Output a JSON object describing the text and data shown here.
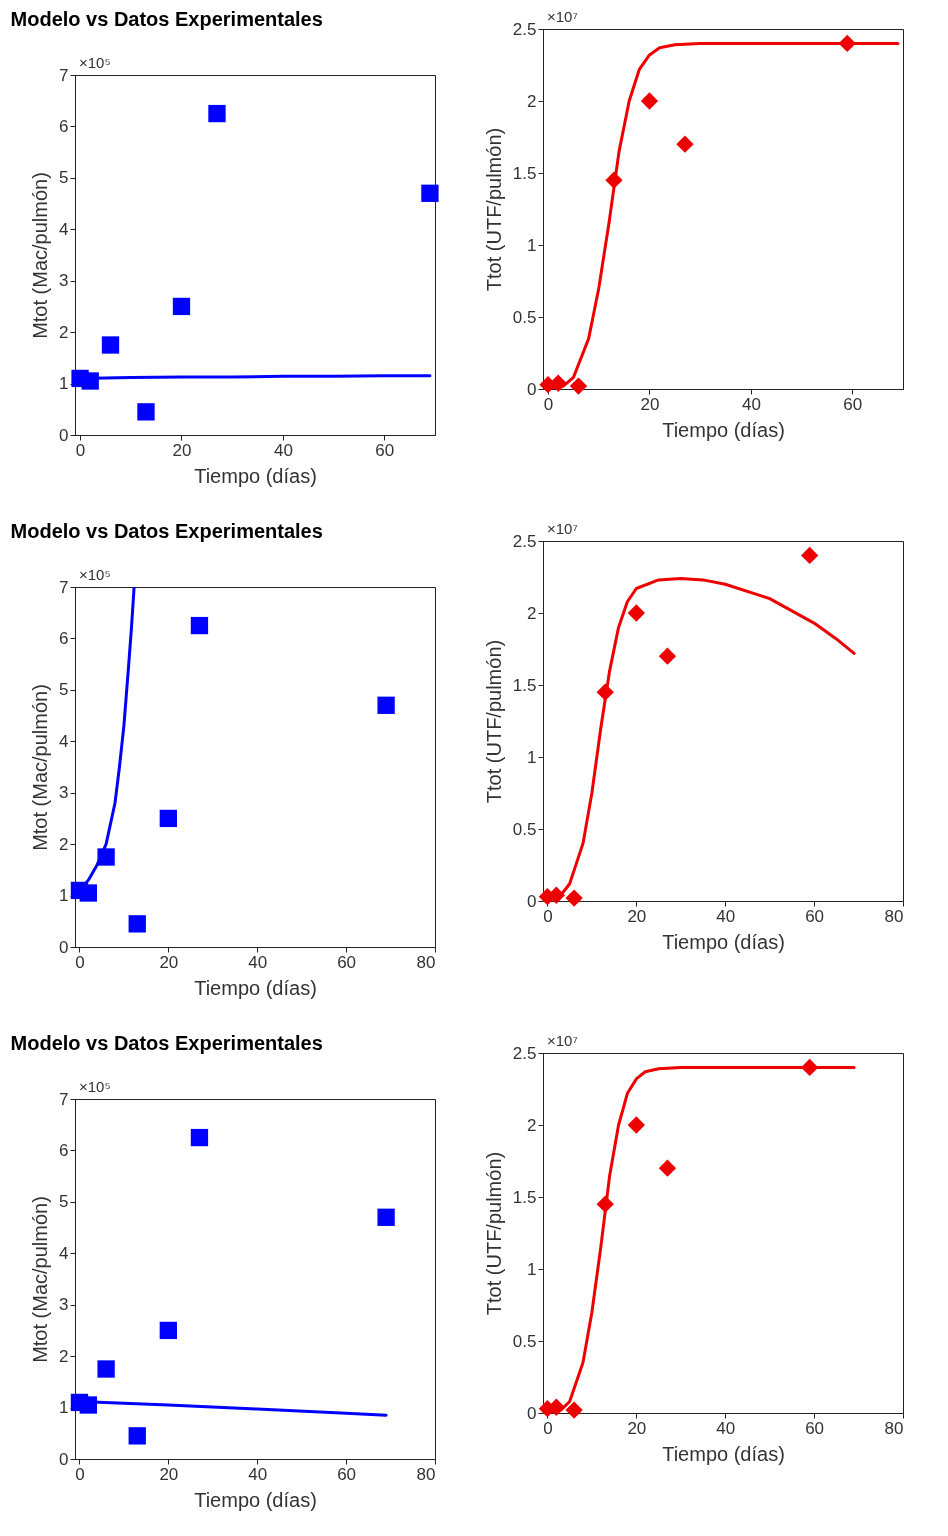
{
  "chart_data": [
    {
      "type": "scatter",
      "title": "Modelo vs Datos Experimentales",
      "xlabel": "Tiempo (días)",
      "ylabel": "Mtot (Mac/pulmón)",
      "annotations": [
        "×10⁵"
      ],
      "xlim": [
        -1,
        70
      ],
      "xticks": [
        0,
        20,
        40,
        60
      ],
      "ylim": [
        0,
        7
      ],
      "yticks": [
        0,
        1,
        2,
        3,
        4,
        5,
        6,
        7
      ],
      "series": [
        {
          "type": "scatter",
          "color": "#0000ff",
          "marker": "square",
          "x": [
            0,
            2,
            6,
            13,
            20,
            27,
            69
          ],
          "values": [
            1.1,
            1.05,
            1.75,
            0.45,
            2.5,
            6.25,
            4.7
          ]
        },
        {
          "type": "line",
          "color": "#0000ff",
          "marker": "none",
          "x": [
            0,
            10,
            20,
            30,
            40,
            50,
            60,
            69
          ],
          "values": [
            1.1,
            1.12,
            1.13,
            1.13,
            1.14,
            1.14,
            1.15,
            1.15
          ]
        }
      ]
    },
    {
      "type": "scatter",
      "xlabel": "Tiempo (días)",
      "ylabel": "Ttot (UTF/pulmón)",
      "annotations": [
        "×10⁷"
      ],
      "xlim": [
        -1,
        70
      ],
      "xticks": [
        0,
        20,
        40,
        60
      ],
      "ylim": [
        0,
        2.5
      ],
      "yticks": [
        0,
        0.5,
        1,
        1.5,
        2,
        2.5
      ],
      "series": [
        {
          "type": "scatter",
          "color": "#ee0000",
          "marker": "diamond",
          "x": [
            0,
            2,
            6,
            13,
            20,
            27,
            59
          ],
          "values": [
            0.03,
            0.04,
            0.02,
            1.45,
            2.0,
            1.7,
            2.4
          ]
        },
        {
          "type": "line",
          "color": "#ee0000",
          "marker": "none",
          "x": [
            0,
            3,
            5,
            8,
            10,
            12,
            14,
            16,
            18,
            20,
            22,
            25,
            30,
            40,
            50,
            60,
            69
          ],
          "values": [
            0,
            0.02,
            0.08,
            0.35,
            0.7,
            1.15,
            1.65,
            2.0,
            2.22,
            2.32,
            2.37,
            2.39,
            2.4,
            2.4,
            2.4,
            2.4,
            2.4
          ]
        }
      ]
    },
    {
      "type": "scatter",
      "title": "Modelo vs Datos Experimentales",
      "xlabel": "Tiempo (días)",
      "ylabel": "Mtot (Mac/pulmón)",
      "annotations": [
        "×10⁵"
      ],
      "xlim": [
        -1,
        80
      ],
      "xticks": [
        0,
        20,
        40,
        60,
        80
      ],
      "ylim": [
        0,
        7
      ],
      "yticks": [
        0,
        1,
        2,
        3,
        4,
        5,
        6,
        7
      ],
      "series": [
        {
          "type": "scatter",
          "color": "#0000ff",
          "marker": "square",
          "x": [
            0,
            2,
            6,
            13,
            20,
            27,
            69
          ],
          "values": [
            1.1,
            1.05,
            1.75,
            0.45,
            2.5,
            6.25,
            4.7
          ]
        },
        {
          "type": "line",
          "color": "#0000ff",
          "marker": "none",
          "x": [
            0,
            2,
            4,
            6,
            8,
            9,
            10,
            11,
            11.7,
            12.3
          ],
          "values": [
            1.1,
            1.3,
            1.6,
            2.0,
            2.8,
            3.5,
            4.3,
            5.4,
            6.2,
            7
          ]
        }
      ]
    },
    {
      "type": "scatter",
      "xlabel": "Tiempo (días)",
      "ylabel": "Ttot (UTF/pulmón)",
      "annotations": [
        "×10⁷"
      ],
      "xlim": [
        -1,
        80
      ],
      "xticks": [
        0,
        20,
        40,
        60,
        80
      ],
      "ylim": [
        0,
        2.5
      ],
      "yticks": [
        0,
        0.5,
        1,
        1.5,
        2,
        2.5
      ],
      "series": [
        {
          "type": "scatter",
          "color": "#ee0000",
          "marker": "diamond",
          "x": [
            0,
            2,
            6,
            13,
            20,
            27,
            59
          ],
          "values": [
            0.03,
            0.04,
            0.02,
            1.45,
            2.0,
            1.7,
            2.4
          ]
        },
        {
          "type": "line",
          "color": "#ee0000",
          "marker": "none",
          "x": [
            0,
            3,
            5,
            8,
            10,
            12,
            14,
            16,
            18,
            20,
            25,
            30,
            35,
            40,
            50,
            60,
            65,
            69
          ],
          "values": [
            0,
            0.04,
            0.12,
            0.4,
            0.75,
            1.2,
            1.6,
            1.9,
            2.08,
            2.17,
            2.23,
            2.24,
            2.23,
            2.2,
            2.1,
            1.93,
            1.82,
            1.72
          ]
        }
      ]
    },
    {
      "type": "scatter",
      "title": "Modelo vs Datos Experimentales",
      "xlabel": "Tiempo (días)",
      "ylabel": "Mtot (Mac/pulmón)",
      "annotations": [
        "×10⁵"
      ],
      "xlim": [
        -1,
        80
      ],
      "xticks": [
        0,
        20,
        40,
        60,
        80
      ],
      "ylim": [
        0,
        7
      ],
      "yticks": [
        0,
        1,
        2,
        3,
        4,
        5,
        6,
        7
      ],
      "series": [
        {
          "type": "scatter",
          "color": "#0000ff",
          "marker": "square",
          "x": [
            0,
            2,
            6,
            13,
            20,
            27,
            69
          ],
          "values": [
            1.1,
            1.05,
            1.75,
            0.45,
            2.5,
            6.25,
            4.7
          ]
        },
        {
          "type": "line",
          "color": "#0000ff",
          "marker": "none",
          "x": [
            0,
            20,
            40,
            60,
            69
          ],
          "values": [
            1.12,
            1.05,
            0.97,
            0.89,
            0.85
          ]
        }
      ]
    },
    {
      "type": "scatter",
      "xlabel": "Tiempo (días)",
      "ylabel": "Ttot (UTF/pulmón)",
      "annotations": [
        "×10⁷"
      ],
      "xlim": [
        -1,
        80
      ],
      "xticks": [
        0,
        20,
        40,
        60,
        80
      ],
      "ylim": [
        0,
        2.5
      ],
      "yticks": [
        0,
        0.5,
        1,
        1.5,
        2,
        2.5
      ],
      "series": [
        {
          "type": "scatter",
          "color": "#ee0000",
          "marker": "diamond",
          "x": [
            0,
            2,
            6,
            13,
            20,
            27,
            59
          ],
          "values": [
            0.03,
            0.04,
            0.02,
            1.45,
            2.0,
            1.7,
            2.4
          ]
        },
        {
          "type": "line",
          "color": "#ee0000",
          "marker": "none",
          "x": [
            0,
            3,
            5,
            8,
            10,
            12,
            14,
            16,
            18,
            20,
            22,
            25,
            30,
            40,
            50,
            60,
            69
          ],
          "values": [
            0,
            0.02,
            0.08,
            0.35,
            0.7,
            1.15,
            1.65,
            2.0,
            2.22,
            2.32,
            2.37,
            2.39,
            2.4,
            2.4,
            2.4,
            2.4,
            2.4
          ]
        }
      ]
    }
  ]
}
